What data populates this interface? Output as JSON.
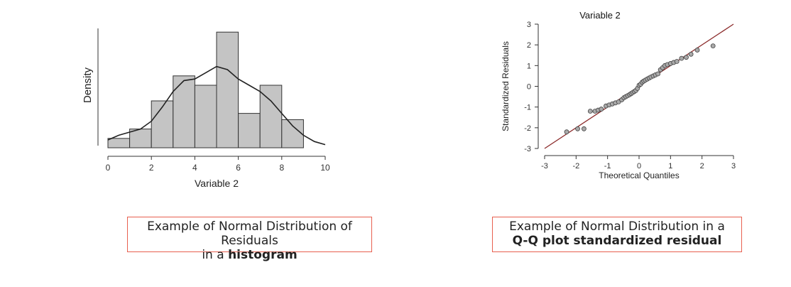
{
  "chart_data": [
    {
      "type": "bar",
      "subtype": "histogram-with-density-curve",
      "title": "",
      "xlabel": "Variable 2",
      "ylabel": "Density",
      "xlim": [
        0,
        10
      ],
      "x_ticks": [
        "0",
        "2",
        "4",
        "6",
        "8",
        "10"
      ],
      "bins": [
        {
          "start": 0,
          "end": 1,
          "value": 0.03
        },
        {
          "start": 1,
          "end": 2,
          "value": 0.06
        },
        {
          "start": 2,
          "end": 3,
          "value": 0.15
        },
        {
          "start": 3,
          "end": 4,
          "value": 0.23
        },
        {
          "start": 4,
          "end": 5,
          "value": 0.2
        },
        {
          "start": 5,
          "end": 6,
          "value": 0.37
        },
        {
          "start": 6,
          "end": 7,
          "value": 0.11
        },
        {
          "start": 7,
          "end": 8,
          "value": 0.2
        },
        {
          "start": 8,
          "end": 9,
          "value": 0.09
        }
      ],
      "density_curve": {
        "x": [
          0,
          0.5,
          1,
          1.5,
          2,
          2.5,
          3,
          3.5,
          4,
          4.5,
          5,
          5.5,
          6,
          6.5,
          7,
          7.5,
          8,
          8.5,
          9,
          9.5,
          10
        ],
        "y": [
          0.025,
          0.04,
          0.05,
          0.06,
          0.085,
          0.13,
          0.18,
          0.215,
          0.22,
          0.24,
          0.26,
          0.25,
          0.22,
          0.2,
          0.18,
          0.15,
          0.11,
          0.07,
          0.04,
          0.02,
          0.01
        ]
      },
      "ylim": [
        0,
        0.4
      ],
      "bar_color": "#c4c4c4",
      "curve_color": "#222222"
    },
    {
      "type": "scatter",
      "subtype": "q-q-plot",
      "title": "Variable 2",
      "xlabel": "Theoretical Quantiles",
      "ylabel": "Standardized Residuals",
      "xlim": [
        -3,
        3
      ],
      "ylim": [
        -3,
        3
      ],
      "x_ticks": [
        "-3",
        "-2",
        "-1",
        "0",
        "1",
        "2",
        "3"
      ],
      "y_ticks": [
        "-3",
        "-2",
        "-1",
        "0",
        "1",
        "2",
        "3"
      ],
      "reference_line": {
        "x": [
          -3,
          3
        ],
        "y": [
          -3,
          3
        ],
        "color": "#8b2a2a"
      },
      "points": {
        "x": [
          -2.3,
          -1.95,
          -1.75,
          -1.55,
          -1.4,
          -1.3,
          -1.2,
          -1.05,
          -0.95,
          -0.85,
          -0.75,
          -0.65,
          -0.55,
          -0.48,
          -0.42,
          -0.36,
          -0.3,
          -0.25,
          -0.2,
          -0.15,
          -0.1,
          -0.05,
          0,
          0.05,
          0.1,
          0.15,
          0.2,
          0.26,
          0.32,
          0.38,
          0.45,
          0.52,
          0.6,
          0.68,
          0.75,
          0.82,
          0.9,
          1.0,
          1.1,
          1.2,
          1.35,
          1.5,
          1.65,
          1.85,
          2.35
        ],
        "y": [
          -2.2,
          -2.05,
          -2.05,
          -1.2,
          -1.2,
          -1.15,
          -1.1,
          -0.95,
          -0.9,
          -0.85,
          -0.8,
          -0.75,
          -0.65,
          -0.55,
          -0.5,
          -0.45,
          -0.4,
          -0.35,
          -0.3,
          -0.25,
          -0.2,
          -0.1,
          0.05,
          0.1,
          0.2,
          0.25,
          0.3,
          0.35,
          0.4,
          0.45,
          0.5,
          0.55,
          0.6,
          0.8,
          0.9,
          1.0,
          1.05,
          1.1,
          1.15,
          1.2,
          1.35,
          1.4,
          1.55,
          1.75,
          1.95
        ]
      },
      "point_color": "#a9a9a9"
    }
  ],
  "captions": {
    "hist_line1": "Example of Normal Distribution of Residuals",
    "hist_line2_prefix": "in a ",
    "hist_line2_bold": "histogram",
    "qq_line1": "Example of Normal Distribution in a",
    "qq_line2_bold": "Q-Q plot standardized residual"
  }
}
